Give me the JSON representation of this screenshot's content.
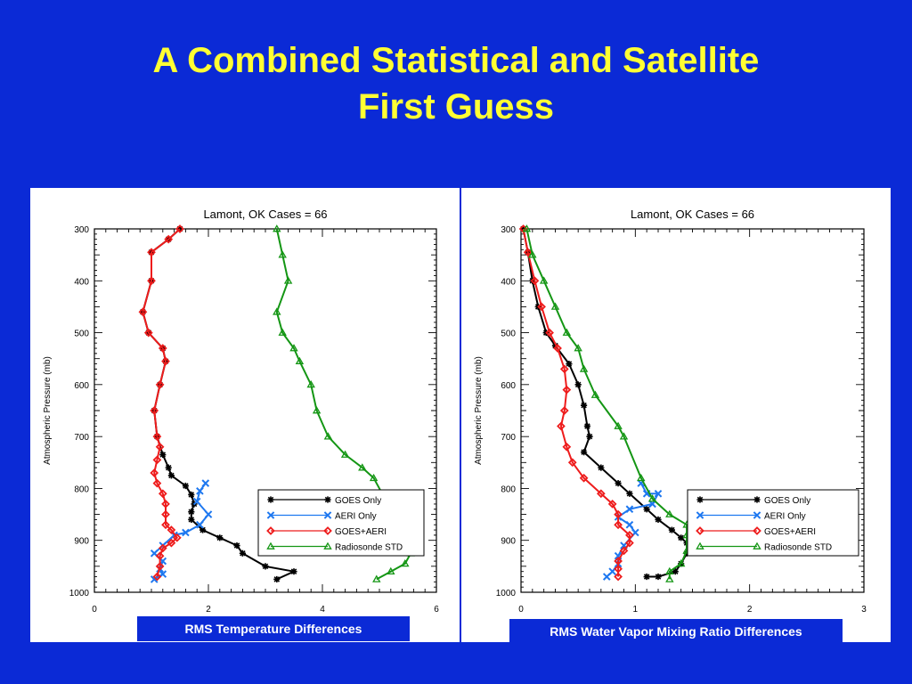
{
  "slide": {
    "title_line1": "A Combined Statistical and Satellite",
    "title_line2": "First Guess"
  },
  "colors": {
    "background": "#0b2ad6",
    "title": "#ffff33",
    "goes": "#000000",
    "aeri": "#1e78f0",
    "goes_aeri": "#ee1c1c",
    "radiosonde": "#149614"
  },
  "chart_data": [
    {
      "type": "line",
      "title": "Lamont, OK   Cases = 66",
      "ylabel": "Atmospheric Pressure (mb)",
      "xlabel": "",
      "caption": "RMS Temperature Differences",
      "xlim": [
        0,
        6
      ],
      "ylim": [
        300,
        1000
      ],
      "y_inverted": true,
      "grid": false,
      "xticks": [
        0,
        2,
        4,
        6
      ],
      "yticks": [
        300,
        400,
        500,
        600,
        700,
        800,
        900,
        1000
      ],
      "legend_position": "lower-right",
      "series": [
        {
          "name": "GOES Only",
          "marker": "asterisk",
          "color": "#000000",
          "points": [
            [
              1.5,
              300
            ],
            [
              1.3,
              320
            ],
            [
              1.0,
              345
            ],
            [
              1.0,
              400
            ],
            [
              0.85,
              460
            ],
            [
              0.95,
              500
            ],
            [
              1.2,
              530
            ],
            [
              1.25,
              555
            ],
            [
              1.15,
              600
            ],
            [
              1.05,
              650
            ],
            [
              1.1,
              700
            ],
            [
              1.2,
              735
            ],
            [
              1.3,
              760
            ],
            [
              1.35,
              775
            ],
            [
              1.6,
              795
            ],
            [
              1.7,
              812
            ],
            [
              1.75,
              830
            ],
            [
              1.7,
              845
            ],
            [
              1.7,
              860
            ],
            [
              1.9,
              880
            ],
            [
              2.2,
              895
            ],
            [
              2.5,
              910
            ],
            [
              2.6,
              925
            ],
            [
              3.0,
              950
            ],
            [
              3.5,
              960
            ],
            [
              3.2,
              975
            ]
          ]
        },
        {
          "name": "AERI Only",
          "marker": "x",
          "color": "#1e78f0",
          "points": [
            [
              1.95,
              790
            ],
            [
              1.85,
              805
            ],
            [
              1.8,
              825
            ],
            [
              2.0,
              850
            ],
            [
              1.85,
              870
            ],
            [
              1.6,
              885
            ],
            [
              1.4,
              890
            ],
            [
              1.2,
              910
            ],
            [
              1.05,
              925
            ],
            [
              1.2,
              940
            ],
            [
              1.15,
              955
            ],
            [
              1.2,
              965
            ],
            [
              1.05,
              975
            ]
          ]
        },
        {
          "name": "GOES+AERI",
          "marker": "diamond",
          "color": "#ee1c1c",
          "points": [
            [
              1.5,
              300
            ],
            [
              1.3,
              320
            ],
            [
              1.0,
              345
            ],
            [
              1.0,
              400
            ],
            [
              0.85,
              460
            ],
            [
              0.95,
              500
            ],
            [
              1.2,
              530
            ],
            [
              1.25,
              555
            ],
            [
              1.15,
              600
            ],
            [
              1.05,
              650
            ],
            [
              1.1,
              700
            ],
            [
              1.15,
              720
            ],
            [
              1.1,
              745
            ],
            [
              1.05,
              770
            ],
            [
              1.1,
              790
            ],
            [
              1.2,
              810
            ],
            [
              1.25,
              830
            ],
            [
              1.25,
              850
            ],
            [
              1.25,
              870
            ],
            [
              1.35,
              880
            ],
            [
              1.45,
              895
            ],
            [
              1.35,
              905
            ],
            [
              1.2,
              915
            ],
            [
              1.15,
              930
            ],
            [
              1.15,
              950
            ],
            [
              1.1,
              970
            ]
          ]
        },
        {
          "name": "Radiosonde STD",
          "marker": "triangle",
          "color": "#149614",
          "points": [
            [
              3.2,
              300
            ],
            [
              3.3,
              350
            ],
            [
              3.4,
              400
            ],
            [
              3.2,
              460
            ],
            [
              3.3,
              500
            ],
            [
              3.5,
              530
            ],
            [
              3.6,
              555
            ],
            [
              3.8,
              600
            ],
            [
              3.9,
              650
            ],
            [
              4.1,
              700
            ],
            [
              4.4,
              735
            ],
            [
              4.7,
              760
            ],
            [
              4.9,
              780
            ],
            [
              5.1,
              820
            ],
            [
              5.35,
              850
            ],
            [
              5.5,
              875
            ],
            [
              5.55,
              890
            ],
            [
              5.6,
              900
            ],
            [
              5.7,
              905
            ],
            [
              5.55,
              925
            ],
            [
              5.45,
              945
            ],
            [
              5.2,
              960
            ],
            [
              4.95,
              975
            ]
          ]
        }
      ]
    },
    {
      "type": "line",
      "title": "Lamont, OK   Cases = 66",
      "ylabel": "Atmospheric Pressure (mb)",
      "xlabel": "",
      "caption": "RMS Water Vapor Mixing Ratio Differences",
      "xlim": [
        0,
        3
      ],
      "ylim": [
        300,
        1000
      ],
      "y_inverted": true,
      "grid": false,
      "xticks": [
        0,
        1,
        2,
        3
      ],
      "yticks": [
        300,
        400,
        500,
        600,
        700,
        800,
        900,
        1000
      ],
      "legend_position": "lower-right",
      "series": [
        {
          "name": "GOES Only",
          "marker": "asterisk",
          "color": "#000000",
          "points": [
            [
              0.02,
              300
            ],
            [
              0.06,
              345
            ],
            [
              0.1,
              400
            ],
            [
              0.15,
              450
            ],
            [
              0.22,
              500
            ],
            [
              0.3,
              525
            ],
            [
              0.42,
              560
            ],
            [
              0.5,
              600
            ],
            [
              0.55,
              640
            ],
            [
              0.58,
              680
            ],
            [
              0.6,
              700
            ],
            [
              0.55,
              730
            ],
            [
              0.7,
              760
            ],
            [
              0.85,
              790
            ],
            [
              0.95,
              810
            ],
            [
              1.1,
              840
            ],
            [
              1.2,
              860
            ],
            [
              1.32,
              880
            ],
            [
              1.4,
              895
            ],
            [
              1.45,
              905
            ],
            [
              1.45,
              925
            ],
            [
              1.4,
              945
            ],
            [
              1.35,
              960
            ],
            [
              1.2,
              970
            ],
            [
              1.1,
              970
            ]
          ]
        },
        {
          "name": "AERI Only",
          "marker": "x",
          "color": "#1e78f0",
          "points": [
            [
              1.05,
              790
            ],
            [
              1.1,
              810
            ],
            [
              1.2,
              810
            ],
            [
              1.15,
              830
            ],
            [
              0.95,
              840
            ],
            [
              0.85,
              855
            ],
            [
              0.95,
              870
            ],
            [
              1.0,
              885
            ],
            [
              0.9,
              910
            ],
            [
              0.85,
              930
            ],
            [
              0.85,
              945
            ],
            [
              0.8,
              960
            ],
            [
              0.75,
              970
            ]
          ]
        },
        {
          "name": "GOES+AERI",
          "marker": "diamond",
          "color": "#ee1c1c",
          "points": [
            [
              0.02,
              300
            ],
            [
              0.06,
              345
            ],
            [
              0.12,
              400
            ],
            [
              0.18,
              450
            ],
            [
              0.25,
              500
            ],
            [
              0.32,
              530
            ],
            [
              0.38,
              570
            ],
            [
              0.4,
              610
            ],
            [
              0.38,
              650
            ],
            [
              0.35,
              680
            ],
            [
              0.4,
              720
            ],
            [
              0.45,
              750
            ],
            [
              0.55,
              780
            ],
            [
              0.7,
              810
            ],
            [
              0.8,
              830
            ],
            [
              0.85,
              850
            ],
            [
              0.85,
              870
            ],
            [
              0.95,
              890
            ],
            [
              0.95,
              905
            ],
            [
              0.9,
              920
            ],
            [
              0.85,
              940
            ],
            [
              0.85,
              955
            ],
            [
              0.85,
              970
            ]
          ]
        },
        {
          "name": "Radiosonde STD",
          "marker": "triangle",
          "color": "#149614",
          "points": [
            [
              0.05,
              300
            ],
            [
              0.1,
              350
            ],
            [
              0.2,
              400
            ],
            [
              0.3,
              450
            ],
            [
              0.4,
              500
            ],
            [
              0.5,
              530
            ],
            [
              0.55,
              570
            ],
            [
              0.65,
              620
            ],
            [
              0.85,
              680
            ],
            [
              0.9,
              700
            ],
            [
              1.05,
              780
            ],
            [
              1.15,
              820
            ],
            [
              1.3,
              850
            ],
            [
              1.45,
              870
            ],
            [
              1.45,
              890
            ],
            [
              1.45,
              920
            ],
            [
              1.4,
              945
            ],
            [
              1.3,
              960
            ],
            [
              1.3,
              975
            ]
          ]
        }
      ]
    }
  ]
}
